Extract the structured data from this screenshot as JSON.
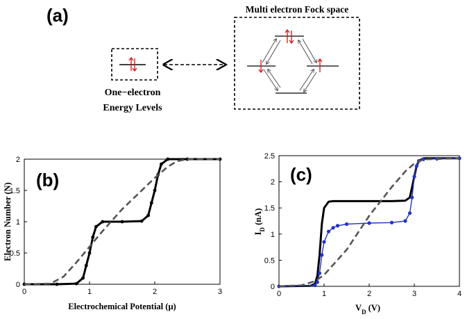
{
  "panel_a": {
    "label": "(a)",
    "fock_title": "Multi electron Fock space",
    "one_electron_line1": "One−electron",
    "one_electron_line2": "Energy Levels"
  },
  "chart_data": [
    {
      "panel": "(b)",
      "type": "line",
      "xlabel": "Electrochemical Potential (μ)",
      "ylabel": "Electron Number (N)",
      "xlim": [
        0,
        3
      ],
      "ylim": [
        0,
        2
      ],
      "xticks": [
        "0",
        "1",
        "2",
        "3"
      ],
      "yticks": [
        "0",
        "0.5",
        "1",
        "1.5",
        "2"
      ],
      "grid": false,
      "series": [
        {
          "style": "black-solid-dots",
          "color": "#000000",
          "x": [
            0,
            0.5,
            0.8,
            0.9,
            0.95,
            1.0,
            1.05,
            1.1,
            1.2,
            1.5,
            1.8,
            1.9,
            1.95,
            2.0,
            2.05,
            2.1,
            2.2,
            2.5,
            3.0
          ],
          "y": [
            0,
            0,
            0.01,
            0.1,
            0.3,
            0.5,
            0.75,
            0.92,
            1.0,
            1.0,
            1.01,
            1.1,
            1.3,
            1.5,
            1.75,
            1.92,
            2.0,
            2.0,
            2.0
          ]
        },
        {
          "style": "gray-dashed",
          "color": "#555555",
          "x": [
            0,
            0.4,
            0.6,
            0.8,
            1.0,
            1.2,
            1.5,
            1.8,
            2.0,
            2.2,
            2.35,
            2.5,
            3.0
          ],
          "y": [
            0,
            0.01,
            0.12,
            0.35,
            0.6,
            0.85,
            1.2,
            1.5,
            1.7,
            1.88,
            1.97,
            2.0,
            2.0
          ]
        }
      ]
    },
    {
      "panel": "(c)",
      "type": "line",
      "xlabel": "V_D (V)",
      "ylabel": "I_D (nA)",
      "xlim": [
        0,
        4
      ],
      "ylim": [
        0,
        2.5
      ],
      "xticks": [
        "0",
        "1",
        "2",
        "3",
        "4"
      ],
      "yticks": [
        "0",
        "0.5",
        "1",
        "1.5",
        "2",
        "2.5"
      ],
      "grid": false,
      "series": [
        {
          "style": "black-solid",
          "color": "#000000",
          "x": [
            0,
            0.7,
            0.8,
            0.85,
            0.9,
            0.95,
            1.0,
            1.1,
            1.2,
            2.5,
            2.8,
            2.9,
            2.95,
            3.0,
            3.05,
            3.1,
            3.2,
            4.0
          ],
          "y": [
            0,
            0.01,
            0.05,
            0.2,
            0.6,
            1.2,
            1.5,
            1.62,
            1.63,
            1.63,
            1.64,
            1.7,
            1.9,
            2.1,
            2.3,
            2.4,
            2.45,
            2.45
          ]
        },
        {
          "style": "blue-dots",
          "color": "#2233cc",
          "x": [
            0,
            0.8,
            0.85,
            0.9,
            0.95,
            1.0,
            1.1,
            1.2,
            1.3,
            1.5,
            2.0,
            2.5,
            2.8,
            2.9,
            2.95,
            3.0,
            3.05,
            3.1,
            3.2,
            3.5,
            4.0
          ],
          "y": [
            0,
            0.02,
            0.08,
            0.25,
            0.6,
            0.85,
            1.05,
            1.12,
            1.16,
            1.19,
            1.21,
            1.22,
            1.25,
            1.4,
            1.7,
            2.1,
            2.3,
            2.4,
            2.43,
            2.44,
            2.45
          ]
        },
        {
          "style": "gray-dashed",
          "color": "#555555",
          "x": [
            0,
            0.5,
            0.8,
            1.0,
            1.5,
            2.0,
            2.5,
            2.8,
            3.0,
            3.2,
            4.0
          ],
          "y": [
            0,
            0.02,
            0.1,
            0.22,
            0.7,
            1.35,
            1.9,
            2.2,
            2.35,
            2.43,
            2.45
          ]
        }
      ]
    }
  ]
}
